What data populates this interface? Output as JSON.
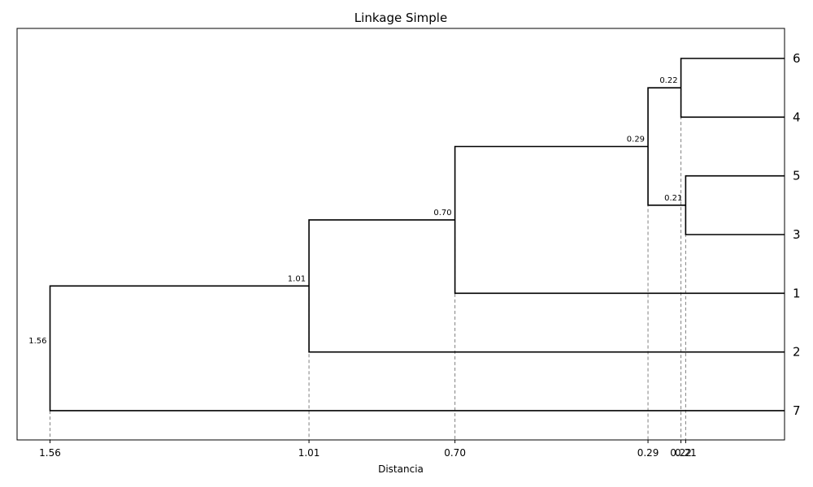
{
  "chart_data": {
    "type": "dendrogram",
    "title": "Linkage Simple",
    "xlabel": "Distancia",
    "ylabel": "",
    "x_axis_reversed": true,
    "xlim": [
      1.63,
      0.0
    ],
    "leaf_order_top_to_bottom": [
      "6",
      "4",
      "5",
      "3",
      "1",
      "2",
      "7"
    ],
    "merges": [
      {
        "left": "6",
        "right": "4",
        "height": 0.22,
        "label": "0.22"
      },
      {
        "left": "5",
        "right": "3",
        "height": 0.21,
        "label": "0.21"
      },
      {
        "left": "6-4",
        "right": "5-3",
        "height": 0.29,
        "label": "0.29"
      },
      {
        "left": "6-4-5-3",
        "right": "1",
        "height": 0.7,
        "label": "0.70"
      },
      {
        "left": "6-4-5-3-1",
        "right": "2",
        "height": 1.01,
        "label": "1.01"
      },
      {
        "left": "6-4-5-3-1-2",
        "right": "7",
        "height": 1.56,
        "label": "1.56"
      }
    ],
    "x_ticks": [
      {
        "value": 1.56,
        "label": "1.56"
      },
      {
        "value": 1.01,
        "label": "1.01"
      },
      {
        "value": 0.7,
        "label": "0.70"
      },
      {
        "value": 0.29,
        "label": "0.29"
      },
      {
        "value": 0.22,
        "label": "0.22"
      },
      {
        "value": 0.21,
        "label": "0.21"
      }
    ],
    "reference_lines": "dashed vertical lines at each merge distance",
    "grid": false,
    "line_color": "#000000",
    "reference_line_color": "#808080"
  }
}
